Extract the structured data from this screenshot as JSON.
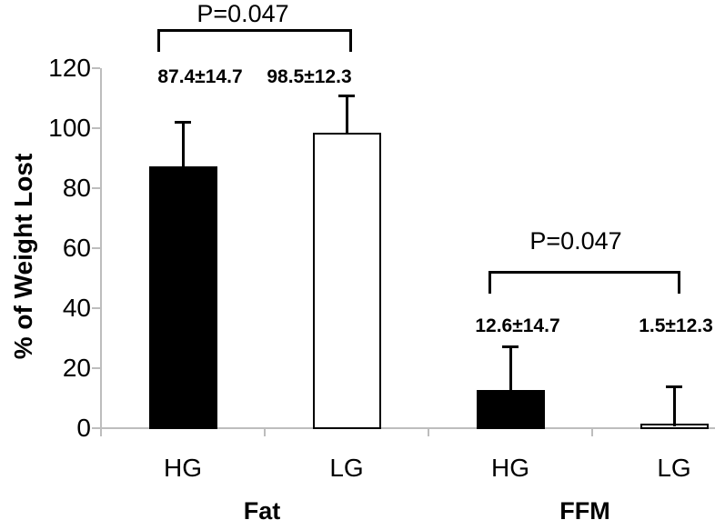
{
  "chart_data": {
    "type": "bar",
    "title": "",
    "xlabel": "",
    "ylabel": "% of Weight Lost",
    "ylim": [
      0,
      120
    ],
    "yticks": [
      0,
      20,
      40,
      60,
      80,
      100,
      120
    ],
    "grid": false,
    "legend": "none",
    "error_bar_direction": "upper",
    "groups": [
      {
        "name": "Fat",
        "p_label": "P=0.047",
        "bars": [
          {
            "label": "HG",
            "value": 87.4,
            "sd": 14.7,
            "annotation": "87.4±14.7",
            "fill": "#000000"
          },
          {
            "label": "LG",
            "value": 98.5,
            "sd": 12.3,
            "annotation": "98.5±12.3",
            "fill": "#ffffff"
          }
        ]
      },
      {
        "name": "FFM",
        "p_label": "P=0.047",
        "bars": [
          {
            "label": "HG",
            "value": 12.6,
            "sd": 14.7,
            "annotation": "12.6±14.7",
            "fill": "#000000"
          },
          {
            "label": "LG",
            "value": 1.5,
            "sd": 12.3,
            "annotation": "1.5±12.3",
            "fill": "#ffffff"
          }
        ]
      }
    ],
    "colors": {
      "bar_dark": "#000000",
      "bar_light": "#ffffff",
      "bar_border": "#000000",
      "error_bar": "#000000",
      "axis_line": "#bdbdbd",
      "text": "#000000",
      "background": "#ffffff"
    }
  }
}
